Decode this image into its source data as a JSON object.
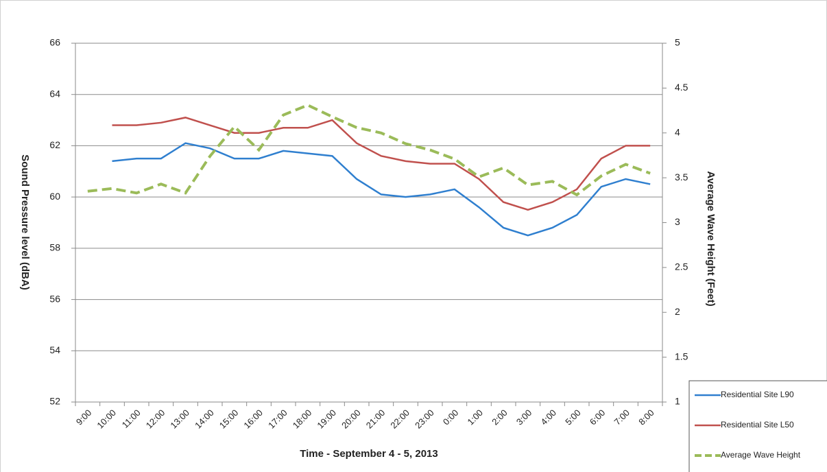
{
  "chart_data": {
    "type": "line",
    "x_label": "Time - September 4 - 5, 2013",
    "y_label": "Sound Pressure level (dBA)",
    "y2_label": "Average Wave Height (Feet)",
    "categories": [
      "9:00",
      "10:00",
      "11:00",
      "12:00",
      "13:00",
      "14:00",
      "15:00",
      "16:00",
      "17:00",
      "18:00",
      "19:00",
      "20:00",
      "21:00",
      "22:00",
      "23:00",
      "0:00",
      "1:00",
      "2:00",
      "3:00",
      "4:00",
      "5:00",
      "6:00",
      "7:00",
      "8:00"
    ],
    "series": [
      {
        "name": "Residential Site L90",
        "color": "#2f7fcf",
        "dash": false,
        "values": [
          null,
          61.4,
          61.5,
          61.5,
          62.1,
          61.9,
          61.5,
          61.5,
          61.8,
          61.7,
          61.6,
          60.7,
          60.1,
          60.0,
          60.1,
          60.3,
          59.6,
          58.8,
          58.5,
          58.8,
          59.3,
          60.4,
          60.7,
          60.5
        ]
      },
      {
        "name": "Residential Site L50",
        "color": "#c0504d",
        "dash": false,
        "values": [
          null,
          62.8,
          62.8,
          62.9,
          63.1,
          62.8,
          62.5,
          62.5,
          62.7,
          62.7,
          63.0,
          62.1,
          61.6,
          61.4,
          61.3,
          61.3,
          60.7,
          59.8,
          59.5,
          59.8,
          60.3,
          61.5,
          62.0,
          62.0
        ]
      },
      {
        "name": "Average Wave Height",
        "color": "#9bbb59",
        "dash": true,
        "axis": "y2",
        "values": [
          3.35,
          3.38,
          3.33,
          3.43,
          3.33,
          3.74,
          4.07,
          3.81,
          4.2,
          4.31,
          4.18,
          4.06,
          4.0,
          3.88,
          3.81,
          3.71,
          3.51,
          3.61,
          3.42,
          3.46,
          3.31,
          3.52,
          3.65,
          3.55
        ]
      }
    ],
    "ylim": [
      52,
      66
    ],
    "yticks": [
      52,
      54,
      56,
      58,
      60,
      62,
      64,
      66
    ],
    "y2lim": [
      1,
      5
    ],
    "y2ticks": [
      1,
      1.5,
      2,
      2.5,
      3,
      3.5,
      4,
      4.5,
      5
    ],
    "grid": true,
    "legend": "lower right"
  }
}
